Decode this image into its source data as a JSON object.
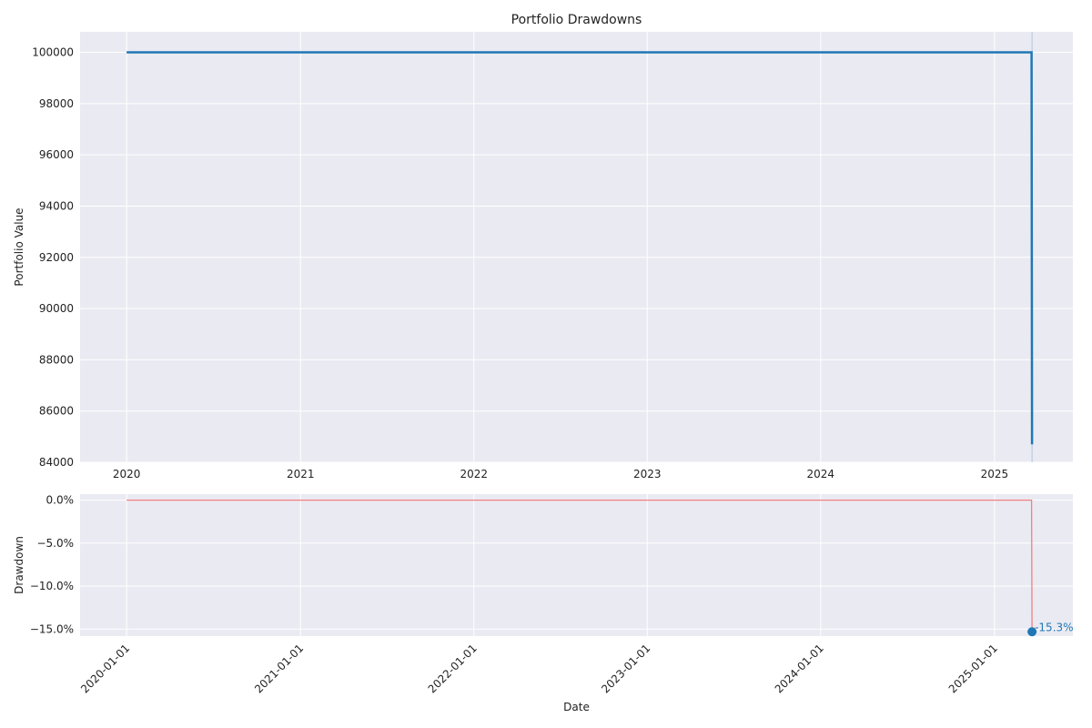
{
  "chart_data": [
    {
      "type": "line",
      "title": "Portfolio Drawdowns",
      "xlabel": "",
      "ylabel": "Portfolio Value",
      "grid": true,
      "x_ticks": [
        "2020",
        "2021",
        "2022",
        "2023",
        "2024",
        "2025"
      ],
      "y_ticks": [
        "84000",
        "86000",
        "88000",
        "90000",
        "92000",
        "94000",
        "96000",
        "98000",
        "100000"
      ],
      "ylim": [
        84000,
        100800
      ],
      "xlim": [
        "2019-09-25",
        "2025-06-15"
      ],
      "series": [
        {
          "color": "#1f77b4",
          "points": [
            {
              "x": "2020-01-01",
              "y": 100000
            },
            {
              "x": "2025-03-20",
              "y": 100000
            },
            {
              "x": "2025-03-21",
              "y": 84700
            }
          ]
        }
      ],
      "vline": {
        "x": "2025-03-21",
        "color": "#b0c4de"
      }
    },
    {
      "type": "line",
      "title": "",
      "xlabel": "Date",
      "ylabel": "Drawdown",
      "grid": true,
      "x_ticks": [
        "2020-01-01",
        "2021-01-01",
        "2022-01-01",
        "2023-01-01",
        "2024-01-01",
        "2025-01-01"
      ],
      "y_ticks": [
        "0.0%",
        "−5.0%",
        "−10.0%",
        "−15.0%"
      ],
      "ylim": [
        -15.8,
        0.7
      ],
      "xlim": [
        "2019-09-25",
        "2025-06-15"
      ],
      "series": [
        {
          "color": "#f08080",
          "points": [
            {
              "x": "2020-01-01",
              "y": 0
            },
            {
              "x": "2025-03-20",
              "y": 0
            },
            {
              "x": "2025-03-21",
              "y": -15.3
            }
          ]
        }
      ],
      "marker": {
        "x": "2025-03-21",
        "y": -15.3,
        "color": "#1f77b4",
        "label": "-15.3%"
      }
    }
  ]
}
